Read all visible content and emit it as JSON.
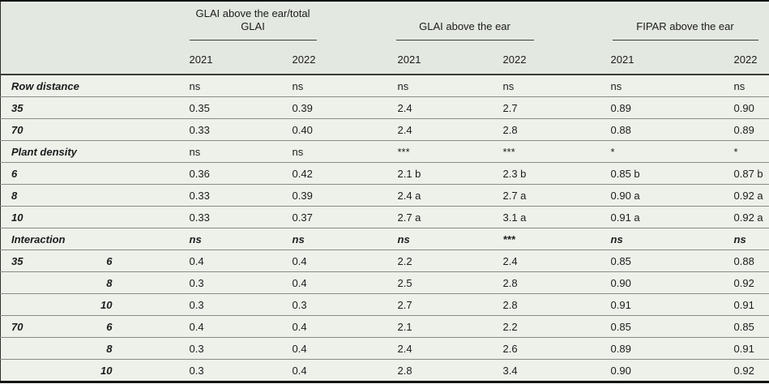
{
  "table": {
    "column_groups": [
      {
        "label": "GLAI above the ear/total GLAI"
      },
      {
        "label": "GLAI above the ear"
      },
      {
        "label": "FIPAR above the ear"
      }
    ],
    "year_headers": [
      "2021",
      "2022",
      "2021",
      "2022",
      "2021",
      "2022"
    ],
    "rows": [
      {
        "type": "factor",
        "label": "Row distance",
        "values": [
          "ns",
          "ns",
          "ns",
          "ns",
          "ns",
          "ns"
        ]
      },
      {
        "type": "level",
        "label": "35",
        "values": [
          "0.35",
          "0.39",
          "2.4",
          "2.7",
          "0.89",
          "0.90"
        ]
      },
      {
        "type": "level",
        "label": "70",
        "values": [
          "0.33",
          "0.40",
          "2.4",
          "2.8",
          "0.88",
          "0.89"
        ]
      },
      {
        "type": "factor",
        "label": "Plant density",
        "values": [
          "ns",
          "ns",
          "***",
          "***",
          "*",
          "*"
        ]
      },
      {
        "type": "level",
        "label": "6",
        "values": [
          "0.36",
          "0.42",
          "2.1 b",
          "2.3 b",
          "0.85 b",
          "0.87 b"
        ]
      },
      {
        "type": "level",
        "label": "8",
        "values": [
          "0.33",
          "0.39",
          "2.4 a",
          "2.7 a",
          "0.90 a",
          "0.92 a"
        ]
      },
      {
        "type": "level",
        "label": "10",
        "values": [
          "0.33",
          "0.37",
          "2.7 a",
          "3.1 a",
          "0.91 a",
          "0.92 a"
        ]
      },
      {
        "type": "factor-emphasis",
        "label": "Interaction",
        "values": [
          "ns",
          "ns",
          "ns",
          "***",
          "ns",
          "ns"
        ]
      },
      {
        "type": "interaction",
        "label": "35",
        "sublabel": "6",
        "values": [
          "0.4",
          "0.4",
          "2.2",
          "2.4",
          "0.85",
          "0.88"
        ]
      },
      {
        "type": "interaction",
        "label": "",
        "sublabel": "8",
        "values": [
          "0.3",
          "0.4",
          "2.5",
          "2.8",
          "0.90",
          "0.92"
        ]
      },
      {
        "type": "interaction",
        "label": "",
        "sublabel": "10",
        "values": [
          "0.3",
          "0.3",
          "2.7",
          "2.8",
          "0.91",
          "0.91"
        ]
      },
      {
        "type": "interaction",
        "label": "70",
        "sublabel": "6",
        "values": [
          "0.4",
          "0.4",
          "2.1",
          "2.2",
          "0.85",
          "0.85"
        ]
      },
      {
        "type": "interaction",
        "label": "",
        "sublabel": "8",
        "values": [
          "0.3",
          "0.4",
          "2.4",
          "2.6",
          "0.89",
          "0.91"
        ]
      },
      {
        "type": "interaction",
        "label": "",
        "sublabel": "10",
        "values": [
          "0.3",
          "0.4",
          "2.8",
          "3.4",
          "0.90",
          "0.92"
        ]
      }
    ],
    "colors": {
      "header_background": "#e3e8e0",
      "body_background": "#eef1ea",
      "border_dark": "#141414",
      "rule_gray": "#8a8a8a",
      "text": "#1c1c1c"
    }
  }
}
